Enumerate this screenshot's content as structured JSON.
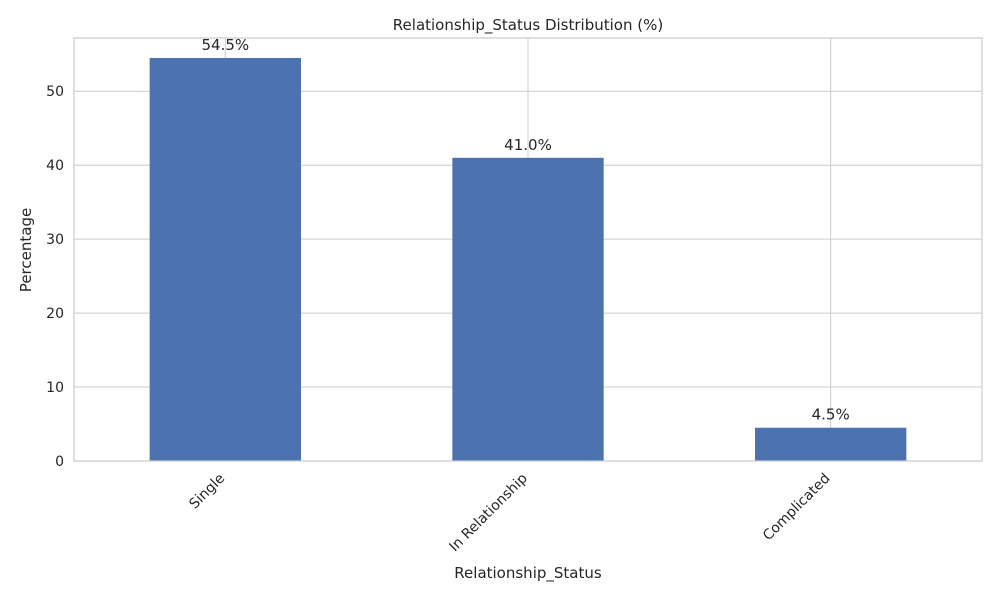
{
  "chart_data": {
    "type": "bar",
    "title": "Relationship_Status Distribution (%)",
    "xlabel": "Relationship_Status",
    "ylabel": "Percentage",
    "categories": [
      "Single",
      "In Relationship",
      "Complicated"
    ],
    "values": [
      54.5,
      41.0,
      4.5
    ],
    "value_labels": [
      "54.5%",
      "41.0%",
      "4.5%"
    ],
    "ylim": [
      0,
      57.2
    ],
    "yticks": [
      0,
      10,
      20,
      30,
      40,
      50
    ],
    "ytick_labels": [
      "0",
      "10",
      "20",
      "30",
      "40",
      "50"
    ],
    "grid": true,
    "bar_color": "#4c72b0"
  }
}
